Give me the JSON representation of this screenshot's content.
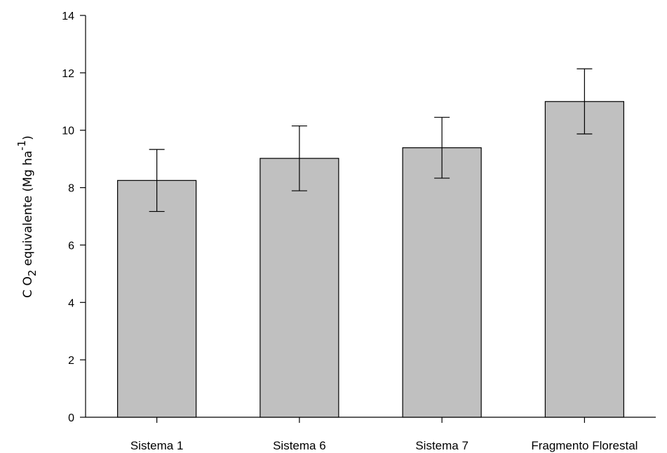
{
  "chart_data": {
    "type": "bar",
    "categories": [
      "Sistema 1",
      "Sistema 6",
      "Sistema 7",
      "Fragmento Florestal"
    ],
    "values": [
      8.25,
      9.02,
      9.39,
      11.0
    ],
    "error_low": [
      7.17,
      7.89,
      8.33,
      9.87
    ],
    "error_high": [
      9.33,
      10.15,
      10.45,
      12.14
    ],
    "ylabel": {
      "prefix": "C O",
      "sub": "2",
      "mid": " equivalente (Mg ha",
      "sup": "-1",
      "suffix": ")"
    },
    "xlabel": "",
    "ylim": [
      0,
      14
    ],
    "yticks": [
      "0",
      "2",
      "4",
      "6",
      "8",
      "10",
      "12",
      "14"
    ],
    "grid": false,
    "colors": {
      "bar": "#c0c0c0",
      "stroke": "#000000"
    }
  }
}
